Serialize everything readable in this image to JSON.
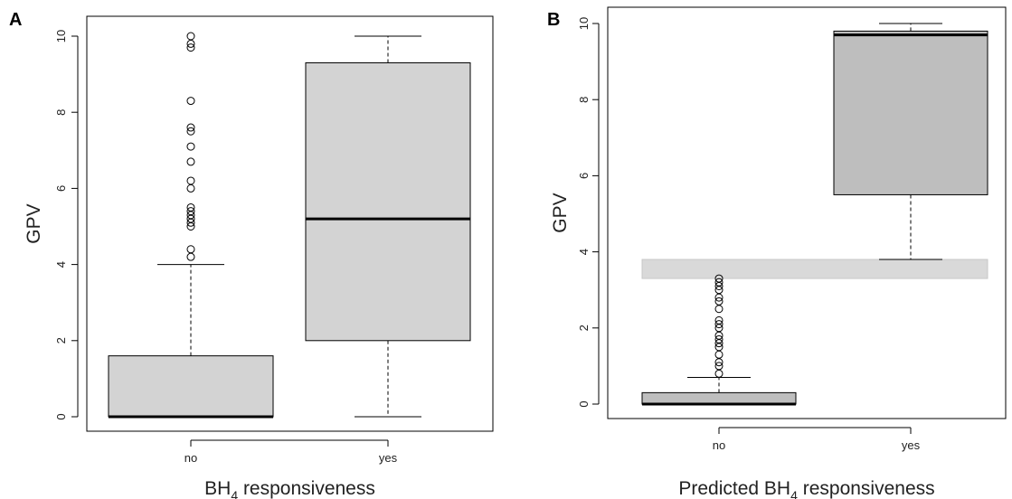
{
  "chart_data": [
    {
      "panel": "A",
      "type": "boxplot",
      "xlabel": "BH",
      "xlabel_sub": "4",
      "xlabel_rest": " responsiveness",
      "ylabel": "GPV",
      "ylim": [
        0,
        10
      ],
      "yticks": [
        0,
        2,
        4,
        6,
        8,
        10
      ],
      "categories": [
        "no",
        "yes"
      ],
      "box_color": "#d3d3d3",
      "boxes": [
        {
          "category": "no",
          "lower_whisker": 0,
          "q1": 0,
          "median": 0,
          "q3": 1.6,
          "upper_whisker": 4.0,
          "outliers": [
            4.2,
            4.4,
            5.0,
            5.1,
            5.2,
            5.3,
            5.4,
            5.5,
            6.0,
            6.2,
            6.7,
            7.1,
            7.5,
            7.6,
            8.3,
            9.7,
            9.8,
            10.0
          ]
        },
        {
          "category": "yes",
          "lower_whisker": 0,
          "q1": 2.0,
          "median": 5.2,
          "q3": 9.3,
          "upper_whisker": 10.0,
          "outliers": []
        }
      ]
    },
    {
      "panel": "B",
      "type": "boxplot",
      "xlabel": "Predicted BH",
      "xlabel_sub": "4",
      "xlabel_rest": " responsiveness",
      "ylabel": "GPV",
      "ylim": [
        0,
        10
      ],
      "yticks": [
        0,
        2,
        4,
        6,
        8,
        10
      ],
      "categories": [
        "no",
        "yes"
      ],
      "box_color": "#bebebe",
      "band": {
        "from": 3.3,
        "to": 3.8,
        "color": "#d9d9d9"
      },
      "boxes": [
        {
          "category": "no",
          "lower_whisker": 0,
          "q1": 0,
          "median": 0,
          "q3": 0.3,
          "upper_whisker": 0.7,
          "outliers": [
            0.8,
            1.0,
            1.1,
            1.3,
            1.5,
            1.6,
            1.7,
            1.8,
            2.0,
            2.1,
            2.2,
            2.5,
            2.7,
            2.8,
            3.0,
            3.1,
            3.2,
            3.3
          ]
        },
        {
          "category": "yes",
          "lower_whisker": 3.8,
          "q1": 5.5,
          "median": 9.7,
          "q3": 9.8,
          "upper_whisker": 10.0,
          "outliers": []
        }
      ]
    }
  ]
}
